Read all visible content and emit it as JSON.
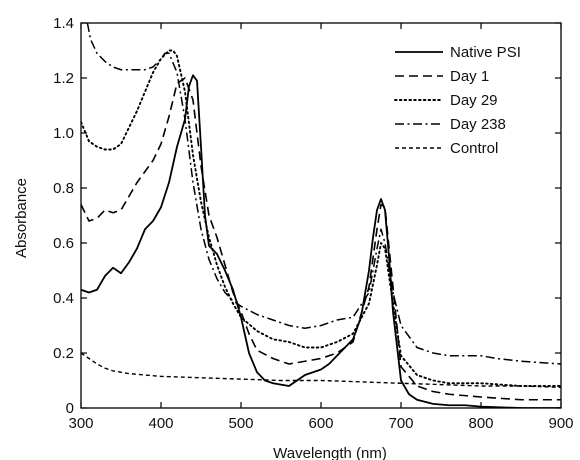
{
  "chart_data": {
    "type": "line",
    "title": "",
    "xlabel": "Wavelength (nm)",
    "ylabel": "Absorbance",
    "xlim": [
      300,
      900
    ],
    "ylim": [
      0,
      1.4
    ],
    "xticks": [
      300,
      400,
      500,
      600,
      700,
      800,
      900
    ],
    "yticks": [
      0,
      0.2,
      0.4,
      0.6,
      0.8,
      1.0,
      1.2,
      1.4
    ],
    "ytick_labels": [
      "0",
      "0.2",
      "0.4",
      "0.6",
      "0.8",
      "1.0",
      "1.2",
      "1.4"
    ],
    "grid": false,
    "legend_position": "top-right",
    "series": [
      {
        "name": "Native PSI",
        "style": "solid",
        "x": [
          300,
          310,
          320,
          330,
          340,
          350,
          360,
          370,
          380,
          390,
          400,
          410,
          420,
          430,
          435,
          440,
          445,
          450,
          455,
          460,
          470,
          480,
          490,
          500,
          510,
          520,
          530,
          540,
          550,
          560,
          570,
          580,
          590,
          600,
          610,
          620,
          630,
          640,
          650,
          660,
          665,
          670,
          675,
          680,
          685,
          690,
          700,
          710,
          720,
          740,
          760,
          780,
          800,
          850,
          900
        ],
        "y": [
          0.43,
          0.42,
          0.43,
          0.48,
          0.51,
          0.49,
          0.53,
          0.58,
          0.65,
          0.68,
          0.73,
          0.82,
          0.95,
          1.05,
          1.17,
          1.21,
          1.19,
          0.95,
          0.7,
          0.59,
          0.56,
          0.5,
          0.43,
          0.33,
          0.2,
          0.13,
          0.1,
          0.09,
          0.085,
          0.08,
          0.1,
          0.12,
          0.13,
          0.14,
          0.16,
          0.19,
          0.22,
          0.25,
          0.33,
          0.5,
          0.62,
          0.72,
          0.76,
          0.72,
          0.55,
          0.35,
          0.1,
          0.05,
          0.03,
          0.015,
          0.01,
          0.01,
          0.005,
          0.0,
          0.0
        ]
      },
      {
        "name": "Day 1",
        "style": "dashed",
        "x": [
          300,
          310,
          320,
          330,
          340,
          350,
          360,
          370,
          380,
          390,
          400,
          410,
          420,
          430,
          440,
          450,
          460,
          470,
          480,
          490,
          500,
          510,
          520,
          540,
          560,
          580,
          600,
          620,
          640,
          660,
          670,
          675,
          680,
          690,
          700,
          720,
          740,
          760,
          800,
          850,
          900
        ],
        "y": [
          0.74,
          0.68,
          0.69,
          0.72,
          0.71,
          0.72,
          0.77,
          0.82,
          0.86,
          0.9,
          0.96,
          1.06,
          1.18,
          1.2,
          1.12,
          0.88,
          0.7,
          0.62,
          0.52,
          0.42,
          0.35,
          0.27,
          0.21,
          0.18,
          0.16,
          0.17,
          0.18,
          0.2,
          0.24,
          0.44,
          0.65,
          0.74,
          0.73,
          0.44,
          0.15,
          0.08,
          0.06,
          0.05,
          0.04,
          0.03,
          0.03
        ]
      },
      {
        "name": "Day 29",
        "style": "dotted",
        "x": [
          300,
          310,
          320,
          330,
          340,
          350,
          360,
          370,
          380,
          390,
          400,
          410,
          415,
          420,
          430,
          440,
          450,
          460,
          470,
          480,
          490,
          500,
          520,
          540,
          560,
          580,
          600,
          620,
          640,
          660,
          670,
          675,
          680,
          690,
          700,
          720,
          740,
          760,
          800,
          850,
          900
        ],
        "y": [
          1.04,
          0.97,
          0.95,
          0.94,
          0.94,
          0.96,
          1.02,
          1.08,
          1.15,
          1.22,
          1.27,
          1.3,
          1.3,
          1.28,
          1.15,
          0.92,
          0.75,
          0.62,
          0.52,
          0.44,
          0.38,
          0.33,
          0.28,
          0.25,
          0.24,
          0.22,
          0.22,
          0.24,
          0.27,
          0.38,
          0.52,
          0.6,
          0.58,
          0.38,
          0.19,
          0.12,
          0.1,
          0.09,
          0.09,
          0.08,
          0.08
        ]
      },
      {
        "name": "Day 238",
        "style": "dashdot",
        "x": [
          308,
          312,
          320,
          330,
          340,
          350,
          360,
          370,
          380,
          390,
          400,
          405,
          410,
          420,
          430,
          440,
          450,
          460,
          470,
          480,
          490,
          500,
          520,
          540,
          560,
          580,
          600,
          620,
          640,
          660,
          670,
          675,
          680,
          690,
          700,
          720,
          740,
          760,
          800,
          820,
          850,
          900
        ],
        "y": [
          1.4,
          1.34,
          1.29,
          1.26,
          1.24,
          1.23,
          1.23,
          1.23,
          1.23,
          1.24,
          1.27,
          1.29,
          1.29,
          1.22,
          1.05,
          0.82,
          0.65,
          0.54,
          0.47,
          0.42,
          0.39,
          0.37,
          0.34,
          0.32,
          0.3,
          0.29,
          0.3,
          0.32,
          0.33,
          0.42,
          0.58,
          0.65,
          0.6,
          0.42,
          0.3,
          0.22,
          0.2,
          0.19,
          0.19,
          0.18,
          0.17,
          0.16
        ]
      },
      {
        "name": "Control",
        "style": "dashed-short",
        "x": [
          300,
          310,
          320,
          330,
          340,
          360,
          380,
          400,
          450,
          500,
          550,
          600,
          650,
          700,
          750,
          800,
          850,
          900
        ],
        "y": [
          0.2,
          0.18,
          0.16,
          0.145,
          0.135,
          0.125,
          0.12,
          0.115,
          0.11,
          0.105,
          0.1,
          0.1,
          0.095,
          0.09,
          0.085,
          0.08,
          0.08,
          0.075
        ]
      }
    ]
  }
}
